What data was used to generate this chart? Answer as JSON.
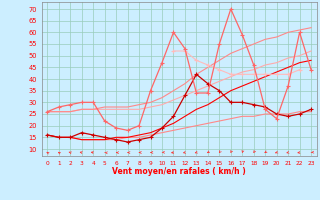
{
  "x": [
    0,
    1,
    2,
    3,
    4,
    5,
    6,
    7,
    8,
    9,
    10,
    11,
    12,
    13,
    14,
    15,
    16,
    17,
    18,
    19,
    20,
    21,
    22,
    23
  ],
  "line_mean_low": [
    16,
    15,
    15,
    14,
    14,
    14,
    14,
    15,
    15,
    16,
    17,
    18,
    19,
    20,
    21,
    22,
    23,
    24,
    24,
    25,
    25,
    25,
    26,
    26
  ],
  "line_mean_high": [
    26,
    26,
    26,
    27,
    27,
    27,
    27,
    27,
    27,
    28,
    29,
    31,
    33,
    35,
    37,
    39,
    41,
    43,
    44,
    46,
    47,
    49,
    50,
    52
  ],
  "line_gust_low": [
    16,
    15,
    15,
    14,
    14,
    14,
    15,
    15,
    16,
    17,
    19,
    21,
    24,
    27,
    29,
    32,
    35,
    37,
    39,
    41,
    43,
    45,
    47,
    48
  ],
  "line_gust_high": [
    26,
    26,
    26,
    27,
    27,
    28,
    28,
    28,
    29,
    30,
    32,
    35,
    38,
    42,
    45,
    48,
    51,
    53,
    55,
    57,
    58,
    60,
    61,
    62
  ],
  "line_mean_marker": [
    16,
    15,
    15,
    17,
    16,
    15,
    14,
    13,
    14,
    15,
    19,
    24,
    33,
    42,
    38,
    35,
    30,
    30,
    29,
    28,
    25,
    24,
    25,
    27
  ],
  "line_gust_marker": [
    26,
    28,
    29,
    30,
    30,
    22,
    19,
    18,
    20,
    35,
    47,
    60,
    53,
    34,
    34,
    55,
    70,
    59,
    46,
    27,
    23,
    37,
    60,
    44
  ],
  "line_extra": [
    null,
    null,
    null,
    null,
    null,
    null,
    null,
    null,
    null,
    null,
    null,
    52,
    52,
    48,
    46,
    44,
    42,
    42,
    42,
    42,
    42,
    42,
    44,
    null
  ],
  "arrow_angles": [
    200,
    200,
    210,
    225,
    235,
    240,
    250,
    260,
    270,
    280,
    295,
    305,
    318,
    328,
    340,
    350,
    354,
    356,
    352,
    342,
    330,
    322,
    310,
    300
  ],
  "ylim": [
    7,
    73
  ],
  "yticks": [
    10,
    15,
    20,
    25,
    30,
    35,
    40,
    45,
    50,
    55,
    60,
    65,
    70
  ],
  "xlabel": "Vent moyen/en rafales ( km/h )",
  "bg_color": "#cceeff",
  "grid_color": "#99ccbb",
  "color_mean_low": "#ff8888",
  "color_mean_high": "#ffaaaa",
  "color_gust_low": "#ff0000",
  "color_gust_high": "#ff8888",
  "color_mean_marker": "#cc0000",
  "color_gust_marker": "#ff6666",
  "color_extra": "#ffbbbb",
  "arrow_color": "#ff3333"
}
